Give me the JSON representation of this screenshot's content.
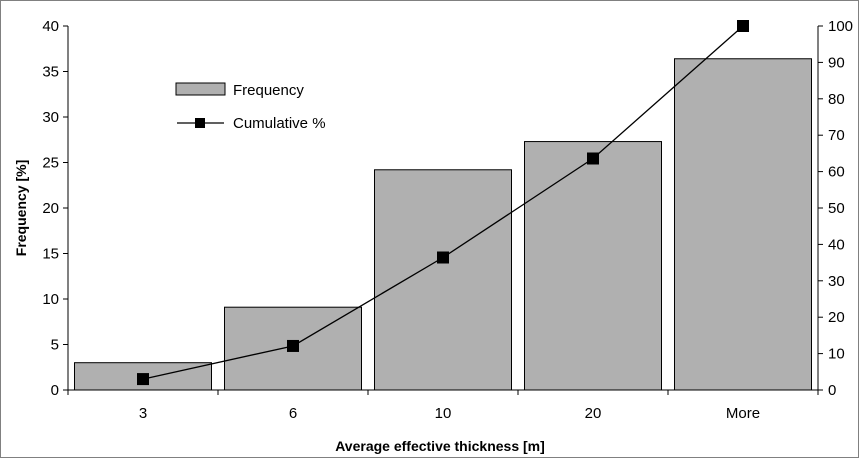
{
  "chart_data": {
    "type": "bar",
    "categories": [
      "3",
      "6",
      "10",
      "20",
      "More"
    ],
    "series": [
      {
        "name": "Frequency",
        "kind": "bar",
        "axis": "left",
        "values": [
          3.0,
          9.1,
          24.2,
          27.3,
          36.4
        ],
        "color": "#b0b0b0"
      },
      {
        "name": "Cumulative %",
        "kind": "line",
        "axis": "right",
        "values": [
          3.0,
          12.1,
          36.4,
          63.6,
          100.0
        ],
        "color": "#000000",
        "marker": "square"
      }
    ],
    "title": "",
    "xlabel": "Average effective thickness [m]",
    "ylabel": "Frequency [%]",
    "ylim": [
      0,
      40
    ],
    "y2lim": [
      0,
      100
    ],
    "yticks": [
      "0",
      "5",
      "10",
      "15",
      "20",
      "25",
      "30",
      "35",
      "40"
    ],
    "y2ticks": [
      "0",
      "10",
      "20",
      "30",
      "40",
      "50",
      "60",
      "70",
      "80",
      "90",
      "100"
    ],
    "grid": false,
    "legend": {
      "position": "upper-left",
      "entries": [
        "Frequency",
        "Cumulative %"
      ]
    }
  }
}
